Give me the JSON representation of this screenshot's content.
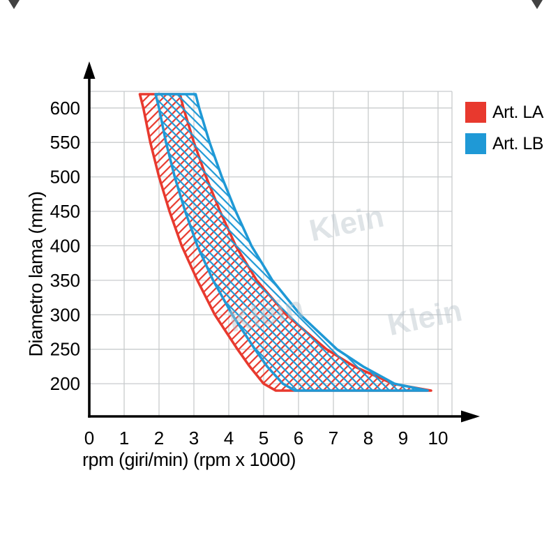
{
  "page": {
    "background": "#ffffff"
  },
  "chart_data": {
    "type": "area",
    "title": "",
    "xlabel": "rpm (giri/min) (rpm x 1000)",
    "ylabel": "Diametro lama (mm)",
    "x_ticks": [
      0,
      1,
      2,
      3,
      4,
      5,
      6,
      7,
      8,
      9,
      10
    ],
    "y_ticks": [
      200,
      250,
      300,
      350,
      400,
      450,
      500,
      550,
      600
    ],
    "xlim": [
      0,
      10.4
    ],
    "ylim": [
      150,
      630
    ],
    "grid": true,
    "legend_position": "top-right",
    "watermark": "Klein",
    "diameters": [
      620,
      600,
      550,
      500,
      450,
      400,
      350,
      300,
      250,
      225,
      200,
      190
    ],
    "series": [
      {
        "name": "Art. LA",
        "color": "#e8392e",
        "hatch": "/",
        "rpm_min": [
          1.45,
          1.55,
          1.75,
          2.0,
          2.3,
          2.65,
          3.1,
          3.6,
          4.25,
          4.6,
          5.0,
          5.35
        ],
        "rpm_max": [
          2.6,
          2.7,
          3.0,
          3.35,
          3.75,
          4.2,
          4.8,
          5.65,
          6.8,
          7.6,
          8.7,
          9.8
        ]
      },
      {
        "name": "Art. LB",
        "color": "#1f99d6",
        "hatch": "\\",
        "rpm_min": [
          1.9,
          2.0,
          2.2,
          2.45,
          2.75,
          3.1,
          3.55,
          4.1,
          4.75,
          5.1,
          5.55,
          5.9
        ],
        "rpm_max": [
          3.05,
          3.15,
          3.45,
          3.8,
          4.2,
          4.65,
          5.25,
          6.05,
          7.1,
          7.85,
          8.75,
          9.7
        ]
      }
    ],
    "legend": [
      {
        "label": "Art. LA",
        "color": "#e8392e"
      },
      {
        "label": "Art. LB",
        "color": "#1f99d6"
      }
    ]
  }
}
